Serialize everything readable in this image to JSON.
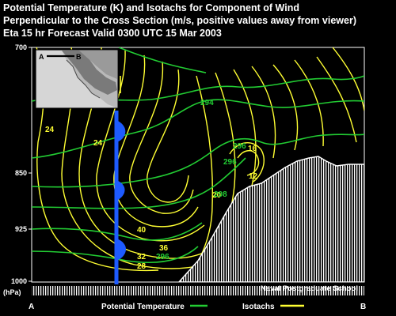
{
  "title_lines": [
    "Potential Temperature (K) and Isotachs for Component of Wind",
    "Perpendicular to the Cross Section (m/s, positive values away from viewer)",
    "Eta 15 hr Forecast Valid 0300 UTC  15 Mar 2003"
  ],
  "y_axis": {
    "ticks": [
      "700",
      "850",
      "925",
      "1000"
    ],
    "unit": "(hPa)"
  },
  "x_axis": {
    "left_label": "A",
    "right_label": "B"
  },
  "inset": {
    "point_a": "A",
    "point_b": "B"
  },
  "contour_labels": {
    "potential_temperature": [
      "294",
      "296",
      "296",
      "298",
      "296"
    ],
    "isotachs": [
      "24",
      "24",
      "16",
      "12",
      "20",
      "40",
      "36",
      "32",
      "28"
    ]
  },
  "legend": {
    "potential_temperature": "Potential Temperature",
    "isotachs": "Isotachs"
  },
  "credit": "Naval Postgraduate School",
  "colors": {
    "background": "#000000",
    "potential_temperature": "#22cc33",
    "isotachs": "#ffff33",
    "front": "#1e5bff",
    "terrain_hatch": "#ffffff"
  }
}
